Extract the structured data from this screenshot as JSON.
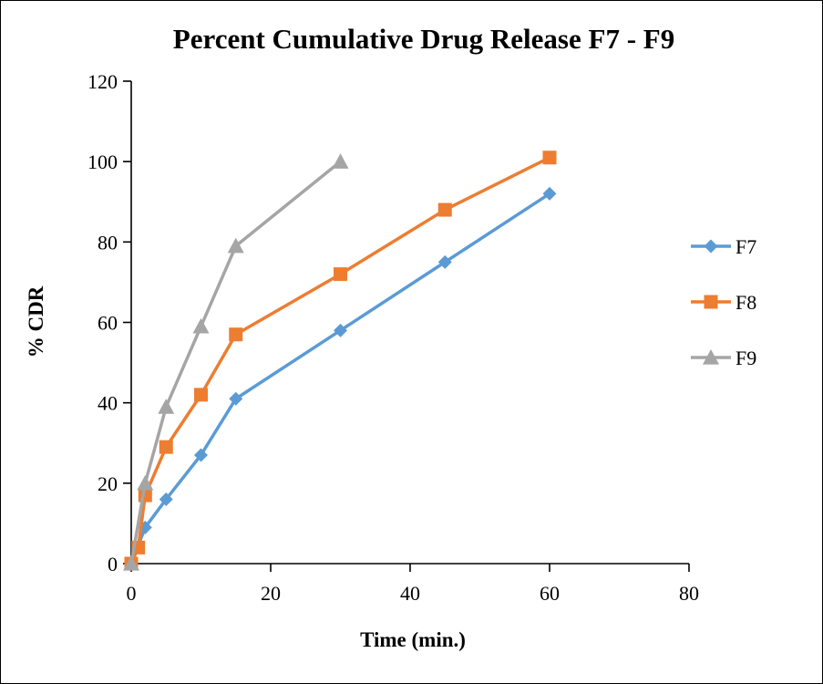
{
  "chart_data": {
    "type": "line",
    "title": "Percent Cumulative Drug Release F7 - F9",
    "xlabel": "Time (min.)",
    "ylabel": "% CDR",
    "xlim": [
      0,
      80
    ],
    "ylim": [
      0,
      120
    ],
    "x_ticks": [
      0,
      20,
      40,
      60,
      80
    ],
    "y_ticks": [
      0,
      20,
      40,
      60,
      80,
      100,
      120
    ],
    "grid": false,
    "legend_position": "right",
    "series": [
      {
        "name": "F7",
        "color": "#5B9BD5",
        "marker": "diamond",
        "x": [
          0,
          2,
          5,
          10,
          15,
          30,
          45,
          60
        ],
        "y": [
          0,
          9,
          16,
          27,
          41,
          58,
          75,
          92
        ]
      },
      {
        "name": "F8",
        "color": "#ED7D31",
        "marker": "square",
        "x": [
          0,
          1,
          2,
          5,
          10,
          15,
          30,
          45,
          60
        ],
        "y": [
          0,
          4,
          17,
          29,
          42,
          57,
          72,
          88,
          101
        ]
      },
      {
        "name": "F9",
        "color": "#A5A5A5",
        "marker": "triangle",
        "x": [
          0,
          2,
          5,
          10,
          15,
          30
        ],
        "y": [
          0,
          20,
          39,
          59,
          79,
          100
        ]
      }
    ]
  }
}
